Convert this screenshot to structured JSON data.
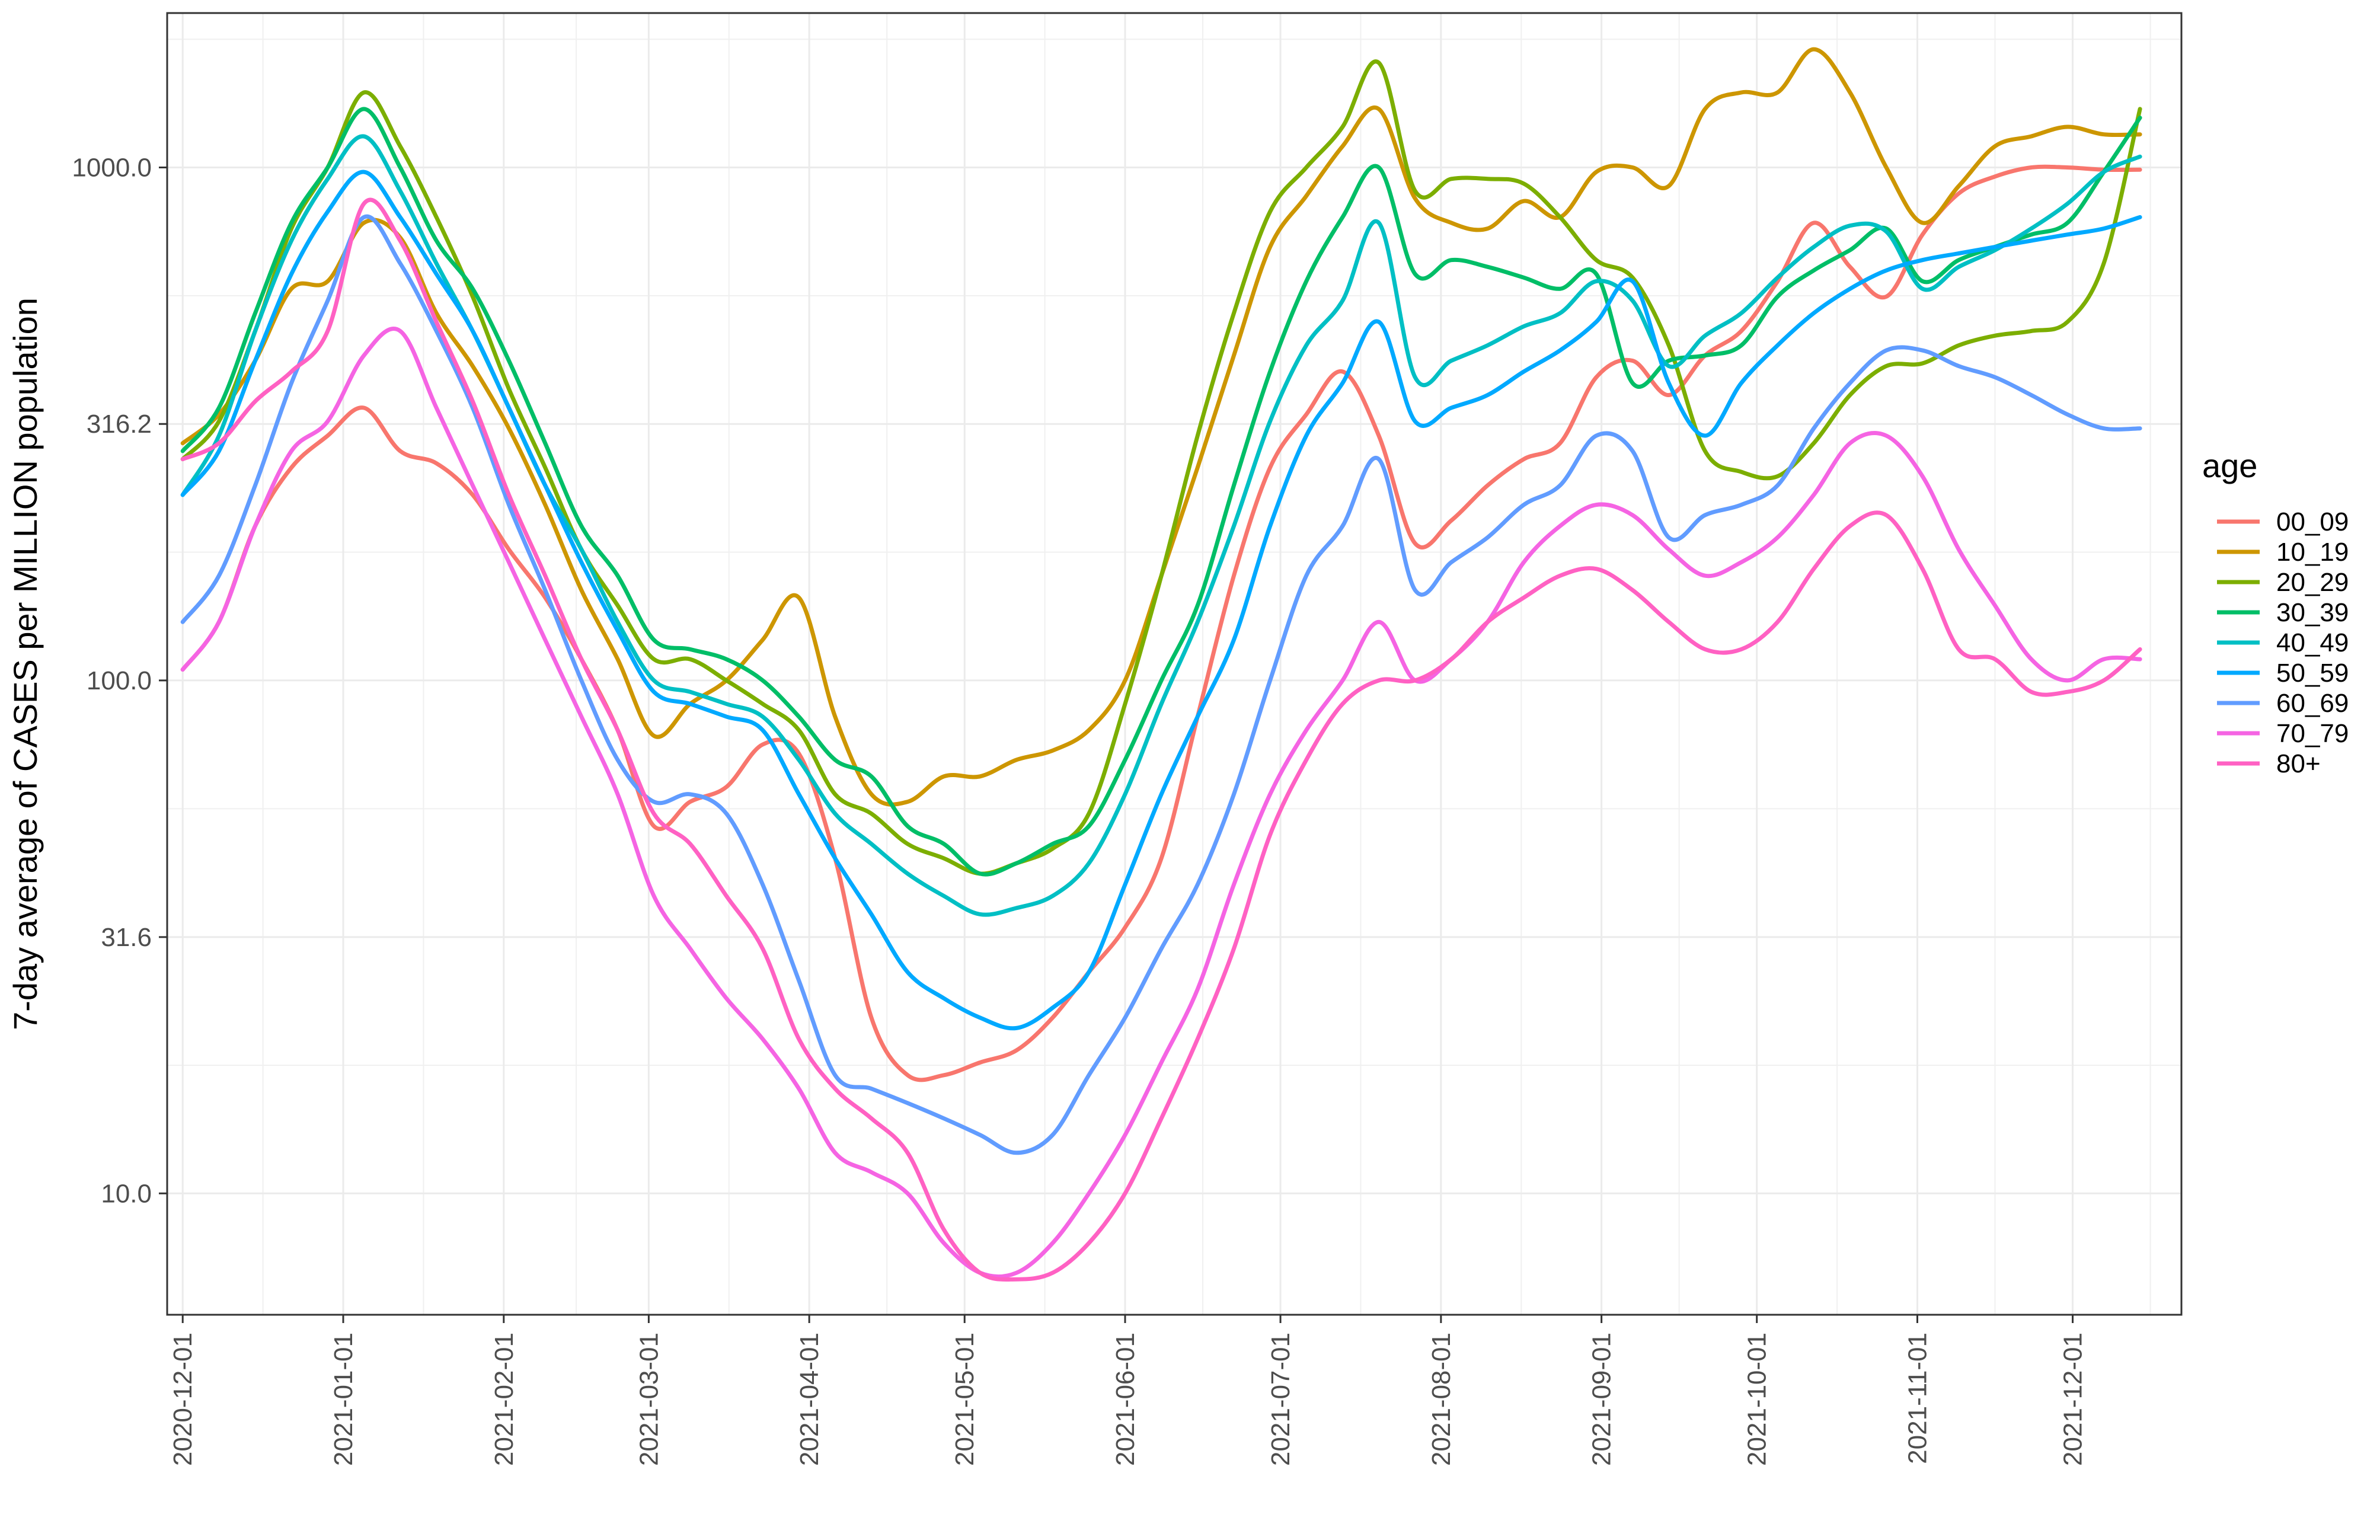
{
  "chart_data": {
    "type": "line",
    "title": "",
    "xlabel": "",
    "ylabel": "7-day average of CASES per MILLION population",
    "y_scale": "log10",
    "ylim": [
      5.8,
      2000
    ],
    "y_ticks": [
      10.0,
      31.6,
      100.0,
      316.2,
      1000.0
    ],
    "y_tick_labels": [
      "10.0",
      "31.6",
      "100.0",
      "316.2",
      "1000.0"
    ],
    "x_range": [
      "2020-11-28",
      "2021-12-22"
    ],
    "x_ticks": [
      "2020-12-01",
      "2021-01-01",
      "2021-02-01",
      "2021-03-01",
      "2021-04-01",
      "2021-05-01",
      "2021-06-01",
      "2021-07-01",
      "2021-08-01",
      "2021-09-01",
      "2021-10-01",
      "2021-11-01",
      "2021-12-01"
    ],
    "grid": true,
    "legend_title": "age",
    "legend_position": "right",
    "x": [
      "2020-12-01",
      "2020-12-08",
      "2020-12-15",
      "2020-12-22",
      "2020-12-29",
      "2021-01-05",
      "2021-01-12",
      "2021-01-19",
      "2021-01-26",
      "2021-02-02",
      "2021-02-09",
      "2021-02-16",
      "2021-02-23",
      "2021-03-02",
      "2021-03-09",
      "2021-03-16",
      "2021-03-23",
      "2021-03-30",
      "2021-04-06",
      "2021-04-13",
      "2021-04-20",
      "2021-04-27",
      "2021-05-04",
      "2021-05-11",
      "2021-05-18",
      "2021-05-25",
      "2021-06-01",
      "2021-06-08",
      "2021-06-15",
      "2021-06-22",
      "2021-06-29",
      "2021-07-06",
      "2021-07-13",
      "2021-07-20",
      "2021-07-27",
      "2021-08-03",
      "2021-08-10",
      "2021-08-17",
      "2021-08-24",
      "2021-08-31",
      "2021-09-07",
      "2021-09-14",
      "2021-09-21",
      "2021-09-28",
      "2021-10-05",
      "2021-10-12",
      "2021-10-19",
      "2021-10-26",
      "2021-11-02",
      "2021-11-09",
      "2021-11-16",
      "2021-11-23",
      "2021-11-30",
      "2021-12-07",
      "2021-12-14"
    ],
    "series": [
      {
        "name": "00_09",
        "color": "#F8766D",
        "values": [
          105,
          130,
          200,
          260,
          300,
          340,
          280,
          265,
          230,
          180,
          145,
          110,
          80,
          52,
          58,
          62,
          75,
          72,
          45,
          22,
          17,
          17,
          18,
          19,
          22,
          27,
          33,
          45,
          85,
          160,
          260,
          330,
          400,
          300,
          185,
          205,
          240,
          270,
          290,
          390,
          420,
          360,
          430,
          480,
          600,
          780,
          640,
          560,
          740,
          890,
          960,
          1000,
          1000,
          990,
          990
        ]
      },
      {
        "name": "10_19",
        "color": "#CD9600",
        "values": [
          290,
          330,
          420,
          580,
          600,
          780,
          730,
          520,
          410,
          310,
          220,
          150,
          110,
          78,
          90,
          100,
          120,
          145,
          85,
          60,
          58,
          65,
          65,
          70,
          73,
          80,
          100,
          160,
          260,
          430,
          700,
          880,
          1100,
          1300,
          870,
          780,
          760,
          860,
          800,
          980,
          1000,
          920,
          1300,
          1400,
          1400,
          1700,
          1400,
          1000,
          780,
          920,
          1100,
          1150,
          1200,
          1160,
          1160
        ]
      },
      {
        "name": "20_29",
        "color": "#7CAE00",
        "values": [
          270,
          320,
          480,
          760,
          1000,
          1400,
          1100,
          800,
          560,
          370,
          260,
          180,
          140,
          110,
          110,
          100,
          90,
          80,
          60,
          55,
          48,
          45,
          42,
          44,
          47,
          55,
          90,
          160,
          300,
          520,
          820,
          1000,
          1200,
          1600,
          900,
          950,
          950,
          930,
          800,
          660,
          610,
          450,
          280,
          255,
          250,
          290,
          360,
          410,
          415,
          450,
          470,
          480,
          500,
          650,
          1300
        ]
      },
      {
        "name": "30_39",
        "color": "#00BE67",
        "values": [
          280,
          340,
          520,
          780,
          1000,
          1300,
          1000,
          720,
          580,
          420,
          290,
          200,
          160,
          120,
          115,
          110,
          100,
          85,
          70,
          65,
          52,
          48,
          42,
          44,
          48,
          52,
          70,
          100,
          140,
          240,
          400,
          600,
          800,
          1000,
          620,
          660,
          640,
          610,
          580,
          620,
          380,
          420,
          430,
          450,
          560,
          630,
          690,
          760,
          600,
          660,
          700,
          740,
          780,
          980,
          1250
        ]
      },
      {
        "name": "40_49",
        "color": "#00BFC4",
        "values": [
          230,
          300,
          480,
          720,
          950,
          1150,
          900,
          650,
          480,
          340,
          240,
          180,
          130,
          100,
          95,
          90,
          85,
          70,
          55,
          48,
          42,
          38,
          35,
          36,
          38,
          44,
          60,
          90,
          130,
          200,
          320,
          450,
          550,
          780,
          390,
          420,
          450,
          490,
          520,
          600,
          550,
          410,
          470,
          520,
          610,
          700,
          770,
          750,
          580,
          640,
          690,
          760,
          850,
          980,
          1050
        ]
      },
      {
        "name": "50_59",
        "color": "#00A9FF",
        "values": [
          230,
          280,
          420,
          620,
          820,
          980,
          800,
          620,
          480,
          340,
          240,
          170,
          125,
          95,
          90,
          85,
          80,
          60,
          45,
          35,
          27,
          24,
          22,
          21,
          23,
          27,
          40,
          60,
          85,
          120,
          200,
          300,
          380,
          500,
          320,
          340,
          360,
          400,
          440,
          500,
          600,
          380,
          300,
          380,
          450,
          520,
          580,
          630,
          660,
          680,
          700,
          720,
          740,
          760,
          800
        ]
      },
      {
        "name": "60_69",
        "color": "#619CFF",
        "values": [
          130,
          160,
          240,
          380,
          550,
          800,
          650,
          480,
          340,
          220,
          150,
          100,
          70,
          58,
          60,
          55,
          40,
          26,
          17,
          16,
          15,
          14,
          13,
          12,
          13,
          17,
          22,
          30,
          40,
          60,
          100,
          160,
          200,
          270,
          150,
          170,
          190,
          220,
          240,
          300,
          280,
          190,
          210,
          220,
          240,
          310,
          380,
          440,
          440,
          410,
          390,
          360,
          330,
          310,
          310
        ]
      },
      {
        "name": "70_79",
        "color": "#F564E3",
        "values": [
          105,
          130,
          200,
          280,
          320,
          430,
          480,
          340,
          240,
          170,
          120,
          85,
          60,
          38,
          30,
          24,
          20,
          16,
          12,
          11,
          10,
          8,
          7,
          7,
          8,
          10,
          13,
          18,
          25,
          40,
          60,
          80,
          100,
          130,
          100,
          110,
          130,
          170,
          200,
          220,
          210,
          180,
          160,
          170,
          190,
          230,
          290,
          300,
          250,
          180,
          140,
          110,
          100,
          110,
          110
        ]
      },
      {
        "name": "80+",
        "color": "#FF61C3",
        "values": [
          270,
          290,
          350,
          400,
          480,
          850,
          720,
          500,
          350,
          230,
          160,
          110,
          80,
          55,
          48,
          38,
          30,
          20,
          16,
          14,
          12,
          8.5,
          7,
          6.8,
          7,
          8,
          10,
          14,
          20,
          30,
          50,
          70,
          90,
          100,
          100,
          110,
          130,
          145,
          160,
          165,
          150,
          130,
          115,
          115,
          130,
          165,
          200,
          210,
          165,
          115,
          110,
          95,
          95,
          100,
          115
        ]
      }
    ]
  }
}
